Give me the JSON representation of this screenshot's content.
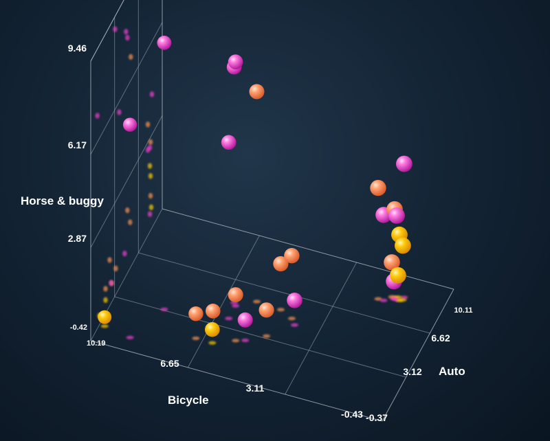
{
  "chart_data": {
    "type": "scatter",
    "title": "",
    "axes": {
      "x": {
        "label": "Bicycle",
        "ticks": [
          "10.19",
          "6.65",
          "3.11",
          "-0.43"
        ],
        "range": [
          -0.43,
          10.19
        ]
      },
      "y": {
        "label": "Auto",
        "ticks": [
          "-0.37",
          "3.12",
          "6.62",
          "10.11"
        ],
        "range": [
          -0.37,
          10.11
        ]
      },
      "z": {
        "label": "Horse & buggy",
        "ticks": [
          "-0.42",
          "2.87",
          "6.17",
          "9.46"
        ],
        "range": [
          -0.42,
          9.46
        ]
      }
    },
    "colors": {
      "pink": "#f53fd0",
      "orange": "#ff9450",
      "yellow": "#ffcc00"
    },
    "points": [
      {
        "x": 8.4,
        "y": 3.2,
        "z": 9.0,
        "c": "pink"
      },
      {
        "x": 6.2,
        "y": 4.8,
        "z": 8.2,
        "c": "pink"
      },
      {
        "x": 6.3,
        "y": 5.0,
        "z": 7.9,
        "c": "pink"
      },
      {
        "x": 5.6,
        "y": 5.5,
        "z": 7.0,
        "c": "orange"
      },
      {
        "x": 9.0,
        "y": 0.6,
        "z": 7.1,
        "c": "pink"
      },
      {
        "x": 6.2,
        "y": 3.8,
        "z": 5.8,
        "c": "pink"
      },
      {
        "x": 1.0,
        "y": 8.6,
        "z": 4.3,
        "c": "pink"
      },
      {
        "x": 1.8,
        "y": 8.0,
        "z": 3.5,
        "c": "orange"
      },
      {
        "x": 1.3,
        "y": 8.4,
        "z": 2.7,
        "c": "orange"
      },
      {
        "x": 1.2,
        "y": 8.3,
        "z": 2.55,
        "c": "pink"
      },
      {
        "x": 1.6,
        "y": 8.0,
        "z": 2.6,
        "c": "pink"
      },
      {
        "x": 1.1,
        "y": 8.3,
        "z": 1.9,
        "c": "yellow"
      },
      {
        "x": 1.0,
        "y": 8.4,
        "z": 1.5,
        "c": "yellow"
      },
      {
        "x": 1.4,
        "y": 8.4,
        "z": 0.8,
        "c": "orange"
      },
      {
        "x": 1.2,
        "y": 8.5,
        "z": 0.35,
        "c": "yellow"
      },
      {
        "x": 1.3,
        "y": 8.3,
        "z": 0.2,
        "c": "pink"
      },
      {
        "x": 4.2,
        "y": 5.0,
        "z": 1.8,
        "c": "orange"
      },
      {
        "x": 4.7,
        "y": 5.4,
        "z": 1.2,
        "c": "orange"
      },
      {
        "x": 4.7,
        "y": 3.3,
        "z": 0.5,
        "c": "orange"
      },
      {
        "x": 4.0,
        "y": 4.6,
        "z": 0.45,
        "c": "pink"
      },
      {
        "x": 5.6,
        "y": 2.4,
        "z": 1.2,
        "c": "orange"
      },
      {
        "x": 6.9,
        "y": 1.8,
        "z": 0.45,
        "c": "orange"
      },
      {
        "x": 6.5,
        "y": 2.7,
        "z": 0.25,
        "c": "orange"
      },
      {
        "x": 5.3,
        "y": 2.6,
        "z": 0.3,
        "c": "pink"
      },
      {
        "x": 6.3,
        "y": 1.8,
        "z": 0.05,
        "c": "yellow"
      },
      {
        "x": 10.0,
        "y": 0.9,
        "z": -0.1,
        "c": "yellow"
      }
    ]
  }
}
